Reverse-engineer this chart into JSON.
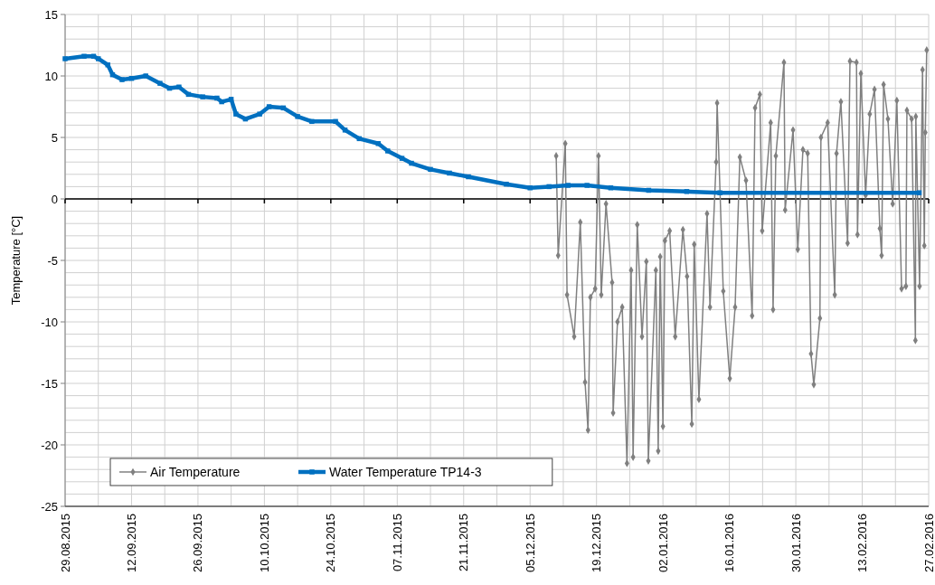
{
  "chart_data": {
    "type": "line",
    "ylabel": "Temperature [°C]",
    "xlim": [
      "2015-08-29",
      "2016-02-27"
    ],
    "xticks": [
      {
        "value": "2015-08-29",
        "label": "29.08.2015"
      },
      {
        "value": "2015-09-12",
        "label": "12.09.2015"
      },
      {
        "value": "2015-09-26",
        "label": "26.09.2015"
      },
      {
        "value": "2015-10-10",
        "label": "10.10.2015"
      },
      {
        "value": "2015-10-24",
        "label": "24.10.2015"
      },
      {
        "value": "2015-11-07",
        "label": "07.11.2015"
      },
      {
        "value": "2015-11-21",
        "label": "21.11.2015"
      },
      {
        "value": "2015-12-05",
        "label": "05.12.2015"
      },
      {
        "value": "2015-12-19",
        "label": "19.12.2015"
      },
      {
        "value": "2016-01-02",
        "label": "02.01.2016"
      },
      {
        "value": "2016-01-16",
        "label": "16.01.2016"
      },
      {
        "value": "2016-01-30",
        "label": "30.01.2016"
      },
      {
        "value": "2016-02-13",
        "label": "13.02.2016"
      },
      {
        "value": "2016-02-27",
        "label": "27.02.2016"
      }
    ],
    "ylim": [
      -25,
      15
    ],
    "yticks": [
      -25,
      -20,
      -15,
      -10,
      -5,
      0,
      5,
      10,
      15
    ],
    "grid": true,
    "legend": "bottom left",
    "series": [
      {
        "name": "Air Temperature",
        "color": "#808080",
        "marker": "diamond",
        "x": [
          "2015-12-10T12:00",
          "2015-12-10T22:00",
          "2015-12-12T10:00",
          "2015-12-12T19:00",
          "2015-12-14T07:00",
          "2015-12-15T14:00",
          "2015-12-16T14:00",
          "2015-12-17T05:00",
          "2015-12-17T17:00",
          "2015-12-18T17:00",
          "2015-12-19T10:00",
          "2015-12-20T00:00",
          "2015-12-21T00:00",
          "2015-12-22T07:00",
          "2015-12-22T12:00",
          "2015-12-23T10:00",
          "2015-12-24T10:00",
          "2015-12-25T10:00",
          "2015-12-26T07:00",
          "2015-12-26T17:00",
          "2015-12-27T14:00",
          "2015-12-28T14:00",
          "2015-12-29T12:00",
          "2015-12-29T22:00",
          "2015-12-31T12:00",
          "2016-01-01T00:00",
          "2016-01-01T10:00",
          "2016-01-02T00:00",
          "2016-01-02T10:00",
          "2016-01-03T10:00",
          "2016-01-04T14:00",
          "2016-01-06T05:00",
          "2016-01-07T02:00",
          "2016-01-08T02:00",
          "2016-01-08T14:00",
          "2016-01-09T14:00",
          "2016-01-11T07:00",
          "2016-01-11T22:00",
          "2016-01-13T05:00",
          "2016-01-13T10:00",
          "2016-01-14T17:00",
          "2016-01-16T02:00",
          "2016-01-17T05:00",
          "2016-01-18T05:00",
          "2016-01-19T12:00",
          "2016-01-20T19:00",
          "2016-01-21T10:00",
          "2016-01-22T10:00",
          "2016-01-22T22:00",
          "2016-01-24T17:00",
          "2016-01-25T05:00",
          "2016-01-25T19:00",
          "2016-01-27T12:00",
          "2016-01-27T18:00",
          "2016-01-29T10:00",
          "2016-01-30T10:00",
          "2016-01-31T12:00",
          "2016-02-01T12:00",
          "2016-02-02T05:00",
          "2016-02-02T19:00",
          "2016-02-04T02:00",
          "2016-02-04T07:00",
          "2016-02-05T17:00",
          "2016-02-07T05:00",
          "2016-02-07T14:00",
          "2016-02-08T12:00",
          "2016-02-09T22:00",
          "2016-02-10T10:00",
          "2016-02-11T19:00",
          "2016-02-12T00:00",
          "2016-02-12T17:00",
          "2016-02-13T17:00",
          "2016-02-14T14:00",
          "2016-02-15T14:00",
          "2016-02-16T17:00",
          "2016-02-17T02:00",
          "2016-02-17T12:00",
          "2016-02-18T10:00",
          "2016-02-19T10:00",
          "2016-02-20T07:00",
          "2016-02-21T07:00",
          "2016-02-22T05:00",
          "2016-02-22T10:00",
          "2016-02-23T10:00",
          "2016-02-24T05:00",
          "2016-02-24T07:00",
          "2016-02-25T02:00",
          "2016-02-25T17:00",
          "2016-02-26T02:00",
          "2016-02-26T07:00",
          "2016-02-26T14:00"
        ],
        "values": [
          3.5,
          -4.6,
          4.5,
          -7.8,
          -11.2,
          -1.9,
          -14.9,
          -18.8,
          -8,
          -7.3,
          3.5,
          -7.8,
          -0.4,
          -6.8,
          -17.4,
          -10,
          -8.8,
          -21.5,
          -5.8,
          -21,
          -2.1,
          -11.2,
          -5.1,
          -21.3,
          -5.8,
          -20.5,
          -4.7,
          -18.5,
          -3.4,
          -2.6,
          -11.2,
          -2.5,
          -6.3,
          -18.3,
          -3.7,
          -16.3,
          -1.2,
          -8.8,
          3,
          7.8,
          -7.5,
          -14.6,
          -8.8,
          3.4,
          1.5,
          -9.5,
          7.4,
          8.5,
          -2.6,
          6.2,
          -9,
          3.5,
          11.1,
          -0.9,
          5.6,
          -4.1,
          4,
          3.7,
          -12.6,
          -15.1,
          -9.7,
          5,
          6.2,
          -7.8,
          3.7,
          7.9,
          -3.6,
          11.2,
          11.1,
          -2.9,
          10.2,
          0.3,
          6.9,
          8.9,
          -2.4,
          -4.6,
          9.3,
          6.5,
          -0.4,
          8,
          -7.3,
          -7.1,
          7.2,
          6.5,
          -11.5,
          6.7,
          -7.1,
          10.5,
          -3.8,
          5.4,
          12.1
        ]
      },
      {
        "name": "Water Temperature TP14-3",
        "color": "#0070c0",
        "marker": "square",
        "x": [
          "2015-08-29",
          "2015-09-02",
          "2015-09-04",
          "2015-09-05",
          "2015-09-07",
          "2015-09-08",
          "2015-09-10",
          "2015-09-12",
          "2015-09-15",
          "2015-09-18",
          "2015-09-20",
          "2015-09-22",
          "2015-09-24",
          "2015-09-27",
          "2015-09-30",
          "2015-10-01",
          "2015-10-03",
          "2015-10-04",
          "2015-10-06",
          "2015-10-09",
          "2015-10-11",
          "2015-10-14",
          "2015-10-17",
          "2015-10-20",
          "2015-10-25",
          "2015-10-27",
          "2015-10-30",
          "2015-11-03",
          "2015-11-05",
          "2015-11-08",
          "2015-11-10",
          "2015-11-14",
          "2015-11-18",
          "2015-11-22",
          "2015-11-30",
          "2015-12-05",
          "2015-12-09",
          "2015-12-13",
          "2015-12-17",
          "2015-12-22",
          "2015-12-30",
          "2016-01-07",
          "2016-01-14",
          "2016-02-25"
        ],
        "values": [
          11.4,
          11.6,
          11.6,
          11.4,
          10.9,
          10.1,
          9.7,
          9.8,
          10.0,
          9.4,
          9.0,
          9.1,
          8.5,
          8.3,
          8.2,
          7.9,
          8.1,
          6.9,
          6.5,
          6.9,
          7.5,
          7.4,
          6.7,
          6.3,
          6.3,
          5.6,
          4.9,
          4.5,
          3.9,
          3.3,
          2.9,
          2.4,
          2.1,
          1.8,
          1.2,
          0.9,
          1.0,
          1.1,
          1.1,
          0.9,
          0.7,
          0.6,
          0.5,
          0.5
        ]
      }
    ]
  }
}
